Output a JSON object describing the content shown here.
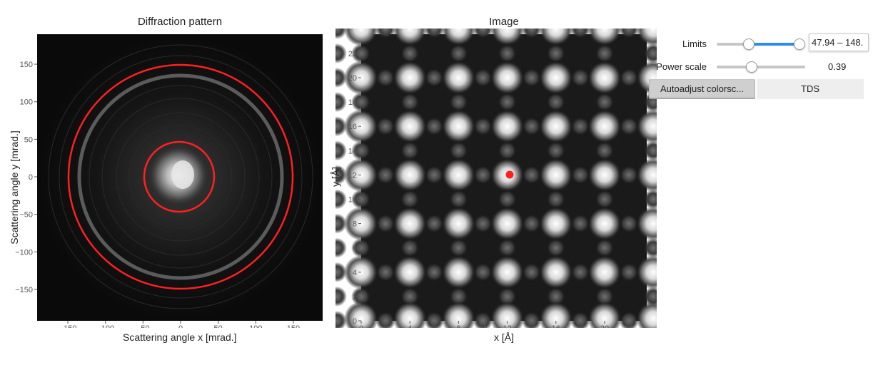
{
  "diffraction": {
    "title": "Diffraction pattern",
    "xlabel": "Scattering angle x [mrad.]",
    "ylabel": "Scattering angle y [mrad.]",
    "xticks": [
      "−150",
      "−100",
      "−50",
      "0",
      "50",
      "100",
      "150"
    ],
    "yticks": [
      "150",
      "100",
      "50",
      "0",
      "−50",
      "−100",
      "−150"
    ],
    "ring_color": "#ff2020"
  },
  "image": {
    "title": "Image",
    "xlabel": "x [Å]",
    "ylabel": "y [Å]",
    "xticks": [
      "0",
      "2",
      "4",
      "6",
      "8",
      "10",
      "12",
      "14",
      "16",
      "18",
      "20",
      "22"
    ],
    "yticks": [
      "22",
      "20",
      "18",
      "16",
      "14",
      "12",
      "10",
      "8",
      "6",
      "4",
      "2",
      "0"
    ],
    "marker_color": "#ff2020"
  },
  "controls": {
    "limits_label": "Limits",
    "limits_value": "47.94 – 148.",
    "limits_range": [
      0.37,
      0.96
    ],
    "power_label": "Power scale",
    "power_value": "0.39",
    "power_level": 0.39,
    "autoadjust_label": "Autoadjust colorsc...",
    "tds_label": "TDS",
    "accent_color": "#2d8ceb"
  }
}
